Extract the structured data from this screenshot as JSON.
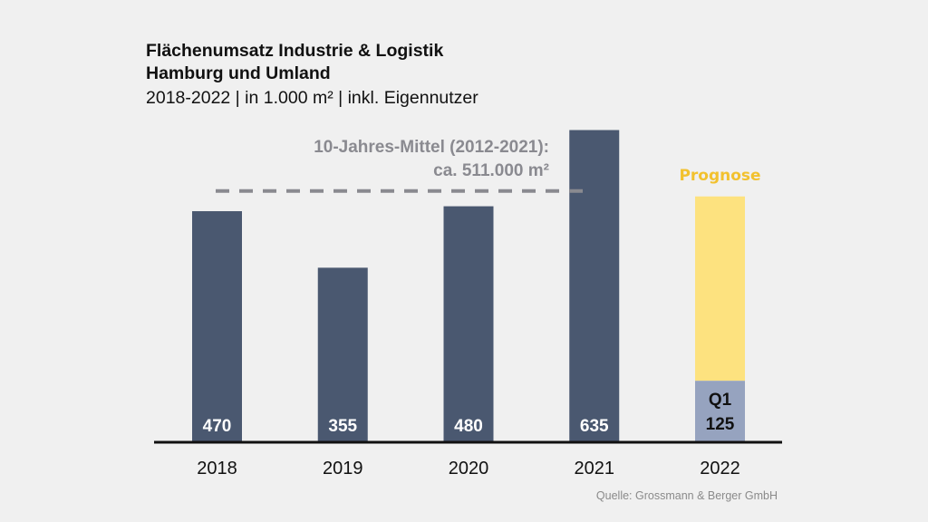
{
  "chart_data": {
    "type": "bar",
    "title": "Flächenumsatz Industrie & Logistik",
    "title_line2": "Hamburg und Umland",
    "subtitle": "2018-2022 | in 1.000 m² | inkl. Eigennutzer",
    "xlabel": "",
    "ylabel": "",
    "ylim": [
      0,
      640
    ],
    "grid": false,
    "categories": [
      "2018",
      "2019",
      "2020",
      "2021",
      "2022"
    ],
    "values": [
      470,
      355,
      480,
      635,
      125
    ],
    "value_labels": [
      "470",
      "355",
      "480",
      "635",
      "Q1\n125"
    ],
    "forecast": {
      "category": "2022",
      "label": "Prognose",
      "q1_value": 125,
      "q1_label_line1": "Q1",
      "q1_label_line2": "125",
      "forecast_total": 500
    },
    "average_line": {
      "value": 511,
      "label_line1": "10-Jahres-Mittel (2012-2021):",
      "label_line2": "ca. 511.000 m²"
    },
    "source": "Quelle: Grossmann & Berger GmbH"
  },
  "colors": {
    "bar": "#4a5870",
    "q1_bar": "#96a3bf",
    "forecast_bar": "#fde27f",
    "forecast_label": "#f2c12e",
    "average_line": "#8a8a90",
    "axis": "#111111",
    "value_label": "#ffffff",
    "q1_label": "#111111"
  }
}
